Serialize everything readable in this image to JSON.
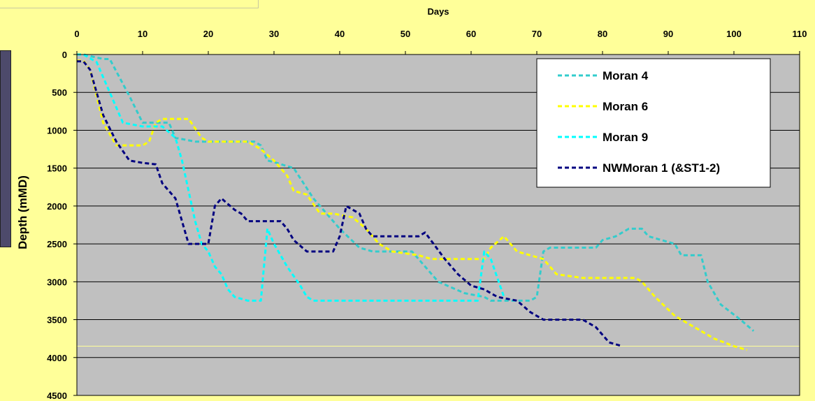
{
  "chart_data": {
    "type": "line",
    "title": "",
    "xlabel": "Days",
    "ylabel": "Depth (mMD)",
    "xlim": [
      0,
      110
    ],
    "ylim": [
      0,
      4500
    ],
    "y_inverted": true,
    "x_axis_position": "top",
    "x_ticks": [
      0,
      10,
      20,
      30,
      40,
      50,
      60,
      70,
      80,
      90,
      100,
      110
    ],
    "y_ticks": [
      0,
      500,
      1000,
      1500,
      2000,
      2500,
      3000,
      3500,
      4000,
      4500
    ],
    "grid": "horizontal",
    "legend_position": "top-right",
    "reference_line": {
      "y": 3850,
      "color": "#ffff99"
    },
    "colors": {
      "page_background": "#ffff99",
      "plot_background": "#c0c0c0",
      "grid": "#000000"
    },
    "series": [
      {
        "name": "Moran 4",
        "color": "#33cccc",
        "dash": "dashed",
        "points": [
          [
            0,
            0
          ],
          [
            1,
            0
          ],
          [
            4,
            60
          ],
          [
            5,
            60
          ],
          [
            8,
            550
          ],
          [
            10,
            900
          ],
          [
            14,
            900
          ],
          [
            15,
            1100
          ],
          [
            18,
            1150
          ],
          [
            27,
            1150
          ],
          [
            28,
            1200
          ],
          [
            29,
            1400
          ],
          [
            30,
            1420
          ],
          [
            33,
            1500
          ],
          [
            36,
            1900
          ],
          [
            38,
            2100
          ],
          [
            40,
            2300
          ],
          [
            43,
            2550
          ],
          [
            45,
            2600
          ],
          [
            51,
            2600
          ],
          [
            52,
            2700
          ],
          [
            55,
            3000
          ],
          [
            59,
            3150
          ],
          [
            62,
            3200
          ],
          [
            63,
            3250
          ],
          [
            66,
            3250
          ],
          [
            69,
            3250
          ],
          [
            70,
            3200
          ],
          [
            71,
            2600
          ],
          [
            72,
            2550
          ],
          [
            79,
            2550
          ],
          [
            80,
            2450
          ],
          [
            82,
            2400
          ],
          [
            84,
            2300
          ],
          [
            86,
            2300
          ],
          [
            87,
            2400
          ],
          [
            89,
            2450
          ],
          [
            91,
            2500
          ],
          [
            92,
            2650
          ],
          [
            95,
            2650
          ],
          [
            96,
            3000
          ],
          [
            98,
            3300
          ],
          [
            101,
            3500
          ],
          [
            103,
            3650
          ]
        ]
      },
      {
        "name": "Moran 6",
        "color": "#ffff00",
        "dash": "dashed",
        "points": [
          [
            0,
            80
          ],
          [
            1,
            80
          ],
          [
            2,
            200
          ],
          [
            4,
            900
          ],
          [
            6,
            1200
          ],
          [
            10,
            1200
          ],
          [
            11,
            1150
          ],
          [
            12,
            900
          ],
          [
            13,
            850
          ],
          [
            17,
            850
          ],
          [
            19,
            1100
          ],
          [
            20,
            1150
          ],
          [
            26,
            1150
          ],
          [
            28,
            1250
          ],
          [
            30,
            1400
          ],
          [
            32,
            1600
          ],
          [
            33,
            1800
          ],
          [
            35,
            1850
          ],
          [
            37,
            2100
          ],
          [
            39,
            2100
          ],
          [
            42,
            2150
          ],
          [
            44,
            2300
          ],
          [
            46,
            2500
          ],
          [
            48,
            2600
          ],
          [
            52,
            2650
          ],
          [
            54,
            2700
          ],
          [
            62,
            2700
          ],
          [
            63,
            2550
          ],
          [
            65,
            2400
          ],
          [
            67,
            2600
          ],
          [
            71,
            2700
          ],
          [
            73,
            2900
          ],
          [
            77,
            2950
          ],
          [
            85,
            2950
          ],
          [
            86,
            3000
          ],
          [
            88,
            3200
          ],
          [
            91,
            3450
          ],
          [
            93,
            3550
          ],
          [
            95,
            3650
          ],
          [
            97,
            3750
          ],
          [
            100,
            3850
          ],
          [
            102,
            3900
          ]
        ]
      },
      {
        "name": "Moran 9",
        "color": "#00ffff",
        "dash": "dashed",
        "points": [
          [
            0,
            0
          ],
          [
            1,
            0
          ],
          [
            3,
            100
          ],
          [
            5,
            500
          ],
          [
            7,
            900
          ],
          [
            10,
            950
          ],
          [
            13,
            950
          ],
          [
            15,
            1100
          ],
          [
            16,
            1400
          ],
          [
            17,
            1800
          ],
          [
            18,
            2200
          ],
          [
            19,
            2500
          ],
          [
            20,
            2600
          ],
          [
            21,
            2800
          ],
          [
            22,
            2900
          ],
          [
            23,
            3100
          ],
          [
            24,
            3200
          ],
          [
            26,
            3250
          ],
          [
            27,
            3250
          ],
          [
            28,
            3250
          ],
          [
            29,
            2300
          ],
          [
            30,
            2500
          ],
          [
            32,
            2800
          ],
          [
            34,
            3050
          ],
          [
            35,
            3200
          ],
          [
            36,
            3250
          ],
          [
            60,
            3250
          ],
          [
            61,
            3250
          ],
          [
            62,
            2600
          ],
          [
            63,
            2700
          ],
          [
            65,
            3200
          ]
        ]
      },
      {
        "name": "NWMoran 1 (&ST1-2)",
        "color": "#000080",
        "dash": "dashed",
        "points": [
          [
            0,
            90
          ],
          [
            1,
            90
          ],
          [
            2,
            200
          ],
          [
            4,
            800
          ],
          [
            6,
            1150
          ],
          [
            8,
            1400
          ],
          [
            10,
            1430
          ],
          [
            12,
            1450
          ],
          [
            13,
            1700
          ],
          [
            15,
            1900
          ],
          [
            16,
            2200
          ],
          [
            17,
            2500
          ],
          [
            20,
            2500
          ],
          [
            21,
            2000
          ],
          [
            22,
            1900
          ],
          [
            24,
            2050
          ],
          [
            25,
            2100
          ],
          [
            26,
            2200
          ],
          [
            28,
            2200
          ],
          [
            31,
            2200
          ],
          [
            32,
            2300
          ],
          [
            33,
            2450
          ],
          [
            35,
            2600
          ],
          [
            39,
            2600
          ],
          [
            40,
            2400
          ],
          [
            41,
            2000
          ],
          [
            43,
            2100
          ],
          [
            44,
            2300
          ],
          [
            45,
            2400
          ],
          [
            52,
            2400
          ],
          [
            53,
            2350
          ],
          [
            56,
            2700
          ],
          [
            58,
            2900
          ],
          [
            60,
            3050
          ],
          [
            62,
            3100
          ],
          [
            64,
            3200
          ],
          [
            67,
            3250
          ],
          [
            69,
            3400
          ],
          [
            71,
            3500
          ],
          [
            77,
            3500
          ],
          [
            79,
            3600
          ],
          [
            81,
            3800
          ],
          [
            83,
            3850
          ]
        ]
      }
    ]
  }
}
